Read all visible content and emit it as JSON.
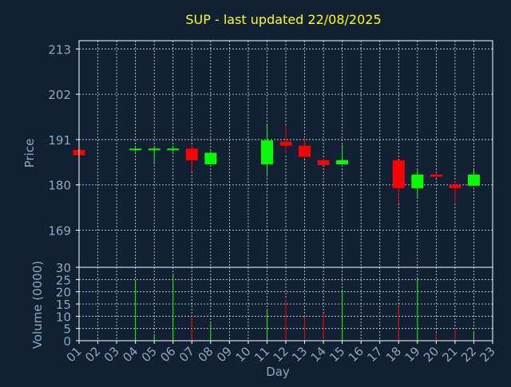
{
  "chart_data": {
    "type": "candlestick",
    "title": "SUP - last updated 22/08/2025",
    "xlabel": "Day",
    "price_axis": {
      "label": "Price",
      "ticks": [
        169,
        180,
        191,
        202,
        213
      ],
      "ylim": [
        160,
        215
      ]
    },
    "volume_axis": {
      "label": "Volume (0000)",
      "ticks": [
        0,
        5,
        10,
        15,
        20,
        25,
        30
      ],
      "ylim": [
        0,
        30
      ]
    },
    "categories": [
      "01",
      "02",
      "03",
      "04",
      "05",
      "06",
      "07",
      "08",
      "09",
      "10",
      "11",
      "12",
      "13",
      "14",
      "15",
      "16",
      "17",
      "18",
      "19",
      "20",
      "21",
      "22",
      "23"
    ],
    "grid": true,
    "colors": {
      "up": "#00ff00",
      "down": "#ff0000",
      "background": "#112033",
      "title": "#ffff00",
      "text": "#8aa8c4"
    },
    "ohlc": [
      {
        "day": "01",
        "open": 188.5,
        "high": 188.5,
        "low": 187.2,
        "close": 187.2,
        "volume": 0
      },
      {
        "day": "04",
        "open": 188.5,
        "high": 189.0,
        "low": 188.0,
        "close": 188.8,
        "volume": 25
      },
      {
        "day": "05",
        "open": 188.5,
        "high": 189.5,
        "low": 185.0,
        "close": 188.8,
        "volume": 2
      },
      {
        "day": "06",
        "open": 188.5,
        "high": 189.5,
        "low": 188.0,
        "close": 188.8,
        "volume": 27
      },
      {
        "day": "07",
        "open": 188.8,
        "high": 189.5,
        "low": 183.3,
        "close": 186.0,
        "volume": 10
      },
      {
        "day": "08",
        "open": 185.0,
        "high": 188.2,
        "low": 185.0,
        "close": 187.8,
        "volume": 7
      },
      {
        "day": "11",
        "open": 185.0,
        "high": 194.5,
        "low": 182.0,
        "close": 190.8,
        "volume": 13
      },
      {
        "day": "12",
        "open": 190.5,
        "high": 194.5,
        "low": 187.5,
        "close": 189.5,
        "volume": 17
      },
      {
        "day": "13",
        "open": 189.5,
        "high": 191.5,
        "low": 186.5,
        "close": 186.8,
        "volume": 10
      },
      {
        "day": "14",
        "open": 186.0,
        "high": 186.5,
        "low": 184.8,
        "close": 184.8,
        "volume": 11
      },
      {
        "day": "15",
        "open": 185.0,
        "high": 189.7,
        "low": 185.0,
        "close": 186.0,
        "volume": 21
      },
      {
        "day": "18",
        "open": 186.0,
        "high": 186.0,
        "low": 175.5,
        "close": 179.2,
        "volume": 14
      },
      {
        "day": "19",
        "open": 179.2,
        "high": 183.8,
        "low": 176.8,
        "close": 182.5,
        "volume": 26
      },
      {
        "day": "20",
        "open": 182.5,
        "high": 183.0,
        "low": 181.8,
        "close": 182.0,
        "volume": 3
      },
      {
        "day": "21",
        "open": 180.0,
        "high": 180.8,
        "low": 175.7,
        "close": 179.2,
        "volume": 5
      },
      {
        "day": "22",
        "open": 179.8,
        "high": 183.8,
        "low": 179.8,
        "close": 182.5,
        "volume": 4
      }
    ]
  }
}
